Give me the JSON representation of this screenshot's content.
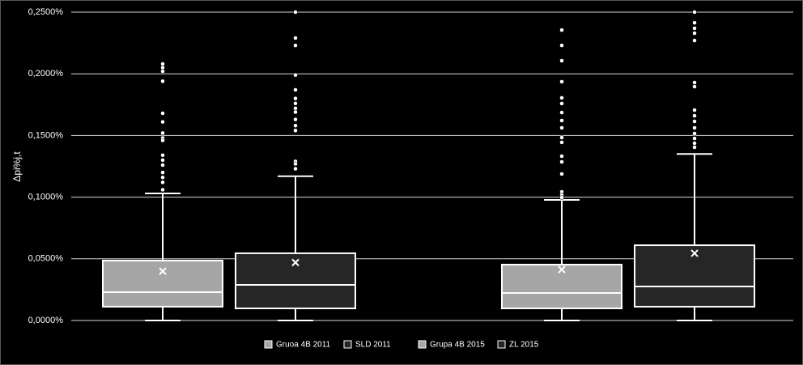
{
  "chart_data": {
    "type": "box",
    "y_label": "Δpi%j,t",
    "ylim": [
      0,
      0.25
    ],
    "yticks": [
      {
        "value": 0,
        "label": "0,0000%"
      },
      {
        "value": 0.05,
        "label": "0,0500%"
      },
      {
        "value": 0.1,
        "label": "0,1000%"
      },
      {
        "value": 0.15,
        "label": "0,1500%"
      },
      {
        "value": 0.2,
        "label": "0,2000%"
      },
      {
        "value": 0.25,
        "label": "0,2500%"
      }
    ],
    "grid": true,
    "legend": "bottom",
    "series": [
      {
        "name": "Gruoa 4B 2011",
        "color": "#a6a6a6",
        "min": 0,
        "q1": 0.0112,
        "median": 0.023,
        "q3": 0.0486,
        "max": 0.103,
        "mean": 0.04,
        "outliers": [
          0.208,
          0.205,
          0.202,
          0.194,
          0.168,
          0.161,
          0.152,
          0.148,
          0.146,
          0.134,
          0.13,
          0.126,
          0.12,
          0.116,
          0.112,
          0.106
        ]
      },
      {
        "name": "SLD 2011",
        "color": "#262626",
        "min": 0,
        "q1": 0.0098,
        "median": 0.0289,
        "q3": 0.0545,
        "max": 0.117,
        "mean": 0.047,
        "outliers": [
          0.25,
          0.229,
          0.223,
          0.199,
          0.187,
          0.18,
          0.176,
          0.172,
          0.169,
          0.163,
          0.158,
          0.154,
          0.129,
          0.127,
          0.123
        ]
      },
      {
        "name": "Grupa 4B 2015",
        "color": "#a6a6a6",
        "min": 0,
        "q1": 0.0098,
        "median": 0.0223,
        "q3": 0.0453,
        "max": 0.0978,
        "mean": 0.0413,
        "outliers": [
          0.2355,
          0.223,
          0.2106,
          0.1936,
          0.1805,
          0.1759,
          0.1686,
          0.1621,
          0.1562,
          0.1483,
          0.1444,
          0.1332,
          0.1286,
          0.1188,
          0.1043,
          0.1017,
          0.0997
        ]
      },
      {
        "name": "ZL 2015",
        "color": "#262626",
        "min": 0,
        "q1": 0.0112,
        "median": 0.0276,
        "q3": 0.061,
        "max": 0.135,
        "mean": 0.0545,
        "outliers": [
          0.25,
          0.2414,
          0.2369,
          0.2329,
          0.227,
          0.1929,
          0.1896,
          0.1706,
          0.166,
          0.1614,
          0.1562,
          0.1516,
          0.1476,
          0.1437,
          0.1404
        ]
      }
    ]
  }
}
